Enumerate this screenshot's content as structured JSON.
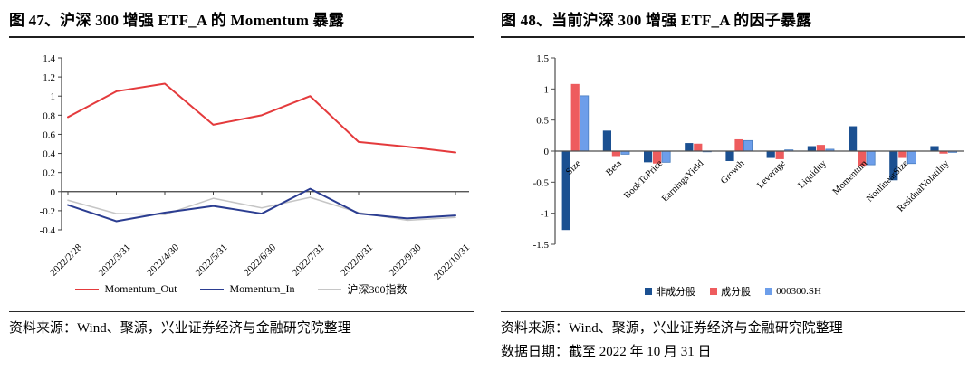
{
  "panels": {
    "left": {
      "title": "图 47、沪深 300 增强 ETF_A 的 Momentum 暴露",
      "source": "资料来源：Wind、聚源，兴业证券经济与金融研究院整理"
    },
    "right": {
      "title": "图 48、当前沪深 300 增强 ETF_A 的因子暴露",
      "source": "资料来源：Wind、聚源，兴业证券经济与金融研究院整理",
      "data_date": "数据日期：截至 2022 年 10 月 31 日"
    }
  },
  "chart_data": [
    {
      "type": "line",
      "title": "图 47、沪深 300 增强 ETF_A 的 Momentum 暴露",
      "x": [
        "2022/2/28",
        "2022/3/31",
        "2022/4/30",
        "2022/5/31",
        "2022/6/30",
        "2022/7/31",
        "2022/8/31",
        "2022/9/30",
        "2022/10/31"
      ],
      "series": [
        {
          "name": "Momentum_Out",
          "color": "#e43a3c",
          "values": [
            0.78,
            1.05,
            1.13,
            0.7,
            0.8,
            1.0,
            0.52,
            0.47,
            0.41
          ]
        },
        {
          "name": "Momentum_In",
          "color": "#2b3d91",
          "values": [
            -0.14,
            -0.31,
            -0.22,
            -0.15,
            -0.23,
            0.03,
            -0.23,
            -0.28,
            -0.25
          ]
        },
        {
          "name": "沪深300指数",
          "color": "#c6c6c6",
          "values": [
            -0.09,
            -0.23,
            -0.24,
            -0.07,
            -0.17,
            -0.06,
            -0.22,
            -0.3,
            -0.27
          ]
        }
      ],
      "ylim": [
        -0.4,
        1.4
      ],
      "ytick_step": 0.2,
      "grid": false,
      "legend_position": "bottom"
    },
    {
      "type": "bar",
      "title": "图 48、当前沪深 300 增强 ETF_A 的因子暴露",
      "categories": [
        "Size",
        "Beta",
        "BookToPrice",
        "EarningsYield",
        "Growth",
        "Leverage",
        "Liquidity",
        "Momentum",
        "NonlinearSize",
        "ResidualVolatility"
      ],
      "series": [
        {
          "name": "非成分股",
          "color": "#1b5091",
          "values": [
            -1.27,
            0.33,
            -0.18,
            0.13,
            -0.16,
            -0.11,
            0.08,
            0.4,
            -0.47,
            0.08
          ]
        },
        {
          "name": "成分股",
          "color": "#ee5c5e",
          "values": [
            1.08,
            -0.08,
            -0.2,
            0.12,
            0.19,
            -0.13,
            0.1,
            -0.25,
            -0.11,
            -0.04
          ]
        },
        {
          "name": "000300.SH",
          "color": "#6d9eea",
          "values": [
            0.89,
            -0.05,
            -0.18,
            -0.01,
            0.17,
            0.02,
            0.03,
            -0.22,
            -0.2,
            -0.02
          ]
        }
      ],
      "ylim": [
        -1.5,
        1.5
      ],
      "ytick_step": 0.5,
      "grid": false,
      "legend_position": "bottom"
    }
  ]
}
